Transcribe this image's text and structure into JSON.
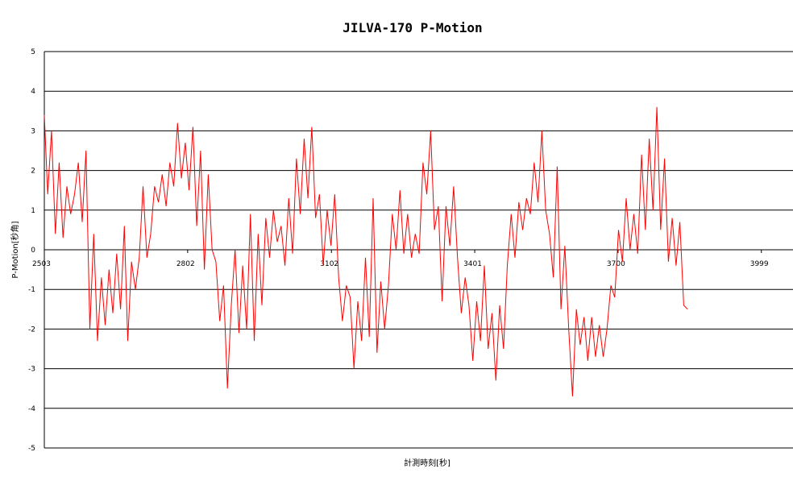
{
  "chart_data": {
    "type": "line",
    "title": "JILVA-170 P-Motion",
    "xlabel": "計測時刻[秒]",
    "ylabel": "P-Motion[秒角]",
    "ylim": [
      -5,
      5
    ],
    "xlim": [
      2503,
      4065
    ],
    "yticks": [
      "5",
      "4",
      "3",
      "2",
      "1",
      "0",
      "-1",
      "-2",
      "-3",
      "-4",
      "-5"
    ],
    "xticks": [
      "2503",
      "2802",
      "3102",
      "3401",
      "3700",
      "3999"
    ],
    "grid": "horizontal",
    "line_color": "#ff0000",
    "series": [
      {
        "values": [
          [
            2503,
            3.4
          ],
          [
            2510,
            1.4
          ],
          [
            2518,
            3.0
          ],
          [
            2526,
            0.4
          ],
          [
            2534,
            2.2
          ],
          [
            2542,
            0.3
          ],
          [
            2550,
            1.6
          ],
          [
            2558,
            0.9
          ],
          [
            2566,
            1.4
          ],
          [
            2574,
            2.2
          ],
          [
            2582,
            0.7
          ],
          [
            2590,
            2.5
          ],
          [
            2598,
            -2.0
          ],
          [
            2606,
            0.4
          ],
          [
            2614,
            -2.3
          ],
          [
            2622,
            -0.7
          ],
          [
            2630,
            -1.9
          ],
          [
            2638,
            -0.5
          ],
          [
            2646,
            -1.6
          ],
          [
            2654,
            -0.1
          ],
          [
            2662,
            -1.5
          ],
          [
            2670,
            0.6
          ],
          [
            2677,
            -2.3
          ],
          [
            2685,
            -0.3
          ],
          [
            2693,
            -1.0
          ],
          [
            2701,
            -0.2
          ],
          [
            2709,
            1.6
          ],
          [
            2717,
            -0.2
          ],
          [
            2725,
            0.4
          ],
          [
            2733,
            1.6
          ],
          [
            2741,
            1.2
          ],
          [
            2749,
            1.9
          ],
          [
            2757,
            1.1
          ],
          [
            2765,
            2.2
          ],
          [
            2773,
            1.6
          ],
          [
            2781,
            3.2
          ],
          [
            2789,
            1.8
          ],
          [
            2797,
            2.7
          ],
          [
            2805,
            1.5
          ],
          [
            2813,
            3.1
          ],
          [
            2821,
            0.6
          ],
          [
            2829,
            2.5
          ],
          [
            2837,
            -0.5
          ],
          [
            2845,
            1.9
          ],
          [
            2853,
            0.0
          ],
          [
            2861,
            -0.3
          ],
          [
            2869,
            -1.8
          ],
          [
            2877,
            -0.9
          ],
          [
            2885,
            -3.5
          ],
          [
            2893,
            -1.4
          ],
          [
            2901,
            0.0
          ],
          [
            2909,
            -2.1
          ],
          [
            2917,
            -0.4
          ],
          [
            2925,
            -2.0
          ],
          [
            2933,
            0.9
          ],
          [
            2941,
            -2.3
          ],
          [
            2949,
            0.4
          ],
          [
            2957,
            -1.4
          ],
          [
            2965,
            0.8
          ],
          [
            2973,
            -0.2
          ],
          [
            2981,
            1.0
          ],
          [
            2989,
            0.2
          ],
          [
            2997,
            0.6
          ],
          [
            3005,
            -0.4
          ],
          [
            3013,
            1.3
          ],
          [
            3021,
            -0.1
          ],
          [
            3029,
            2.3
          ],
          [
            3037,
            0.9
          ],
          [
            3045,
            2.8
          ],
          [
            3053,
            1.3
          ],
          [
            3061,
            3.1
          ],
          [
            3069,
            0.8
          ],
          [
            3077,
            1.4
          ],
          [
            3085,
            -0.4
          ],
          [
            3093,
            1.0
          ],
          [
            3101,
            0.1
          ],
          [
            3109,
            1.4
          ],
          [
            3117,
            -0.7
          ],
          [
            3125,
            -1.8
          ],
          [
            3133,
            -0.9
          ],
          [
            3141,
            -1.2
          ],
          [
            3149,
            -3.0
          ],
          [
            3157,
            -1.3
          ],
          [
            3165,
            -2.3
          ],
          [
            3173,
            -0.2
          ],
          [
            3181,
            -2.2
          ],
          [
            3189,
            1.3
          ],
          [
            3197,
            -2.6
          ],
          [
            3205,
            -0.8
          ],
          [
            3213,
            -2.0
          ],
          [
            3221,
            -0.9
          ],
          [
            3229,
            0.9
          ],
          [
            3237,
            0.0
          ],
          [
            3245,
            1.5
          ],
          [
            3253,
            -0.1
          ],
          [
            3261,
            0.9
          ],
          [
            3269,
            -0.2
          ],
          [
            3277,
            0.4
          ],
          [
            3285,
            -0.1
          ],
          [
            3293,
            2.2
          ],
          [
            3301,
            1.4
          ],
          [
            3309,
            3.0
          ],
          [
            3317,
            0.5
          ],
          [
            3325,
            1.1
          ],
          [
            3333,
            -1.3
          ],
          [
            3341,
            1.1
          ],
          [
            3349,
            0.1
          ],
          [
            3357,
            1.6
          ],
          [
            3365,
            -0.2
          ],
          [
            3373,
            -1.6
          ],
          [
            3381,
            -0.7
          ],
          [
            3389,
            -1.4
          ],
          [
            3397,
            -2.8
          ],
          [
            3405,
            -1.3
          ],
          [
            3413,
            -2.3
          ],
          [
            3421,
            -0.4
          ],
          [
            3429,
            -2.5
          ],
          [
            3437,
            -1.6
          ],
          [
            3445,
            -3.3
          ],
          [
            3453,
            -1.4
          ],
          [
            3461,
            -2.5
          ],
          [
            3469,
            -0.4
          ],
          [
            3477,
            0.9
          ],
          [
            3485,
            -0.2
          ],
          [
            3493,
            1.2
          ],
          [
            3501,
            0.5
          ],
          [
            3509,
            1.3
          ],
          [
            3517,
            0.9
          ],
          [
            3525,
            2.2
          ],
          [
            3533,
            1.2
          ],
          [
            3541,
            3.0
          ],
          [
            3549,
            1.0
          ],
          [
            3557,
            0.4
          ],
          [
            3565,
            -0.7
          ],
          [
            3573,
            2.1
          ],
          [
            3581,
            -1.5
          ],
          [
            3589,
            0.1
          ],
          [
            3597,
            -2.0
          ],
          [
            3605,
            -3.7
          ],
          [
            3613,
            -1.5
          ],
          [
            3621,
            -2.4
          ],
          [
            3629,
            -1.7
          ],
          [
            3637,
            -2.8
          ],
          [
            3645,
            -1.7
          ],
          [
            3653,
            -2.7
          ],
          [
            3661,
            -1.9
          ],
          [
            3669,
            -2.7
          ],
          [
            3677,
            -2.0
          ],
          [
            3685,
            -0.9
          ],
          [
            3693,
            -1.2
          ],
          [
            3701,
            0.5
          ],
          [
            3709,
            -0.3
          ],
          [
            3717,
            1.3
          ],
          [
            3725,
            0.0
          ],
          [
            3733,
            0.9
          ],
          [
            3741,
            -0.1
          ],
          [
            3749,
            2.4
          ],
          [
            3757,
            0.5
          ],
          [
            3765,
            2.8
          ],
          [
            3773,
            1.0
          ],
          [
            3781,
            3.6
          ],
          [
            3789,
            0.5
          ],
          [
            3797,
            2.3
          ],
          [
            3805,
            -0.3
          ],
          [
            3813,
            0.8
          ],
          [
            3821,
            -0.4
          ],
          [
            3829,
            0.7
          ],
          [
            3837,
            -1.4
          ],
          [
            3845,
            -1.5
          ]
        ]
      }
    ]
  }
}
